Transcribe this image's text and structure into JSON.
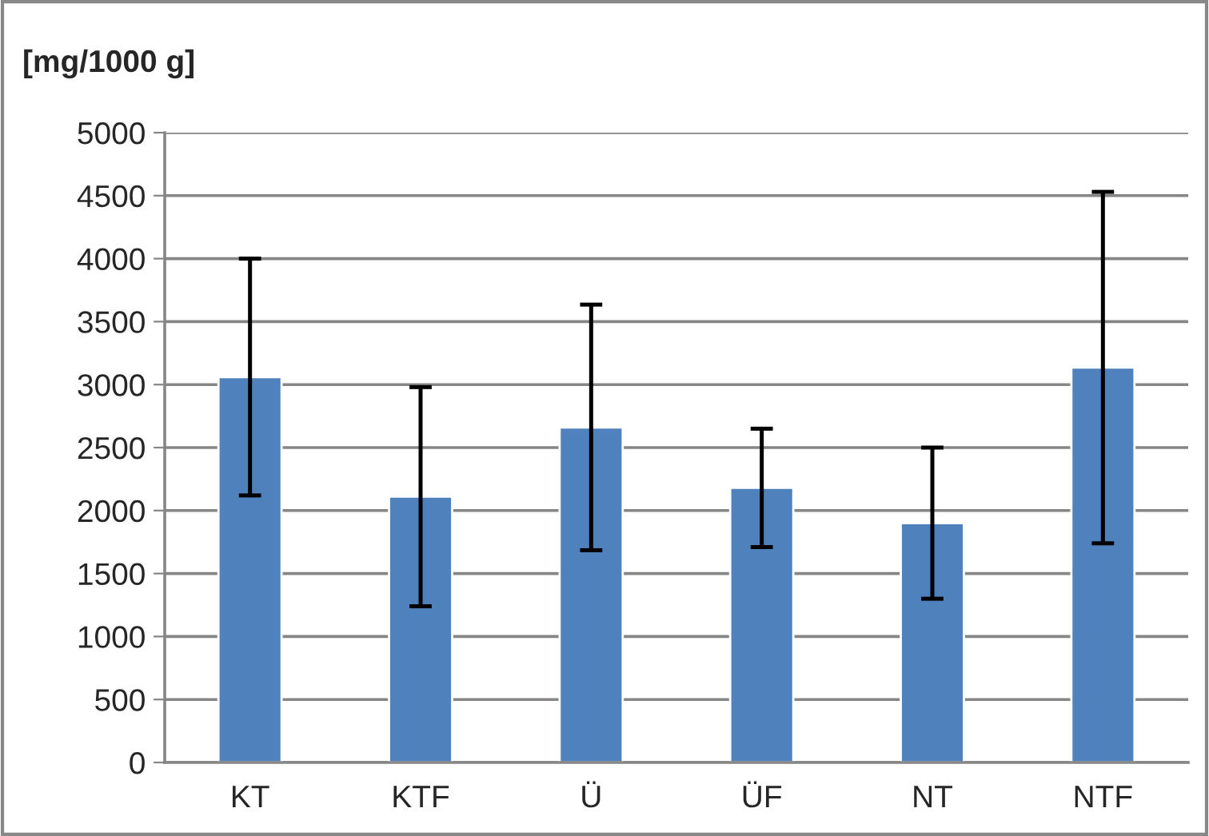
{
  "chart_data": {
    "type": "bar",
    "ylabel": "[mg/1000 g]",
    "categories": [
      "KT",
      "KTF",
      "Ü",
      "ÜF",
      "NT",
      "NTF"
    ],
    "values": [
      3060,
      2110,
      2660,
      2180,
      1900,
      3135
    ],
    "errors": [
      940,
      870,
      975,
      470,
      600,
      1395
    ],
    "color": "#4f81bd",
    "ylim": [
      0,
      5000
    ],
    "yticks": [
      0,
      500,
      1000,
      1500,
      2000,
      2500,
      3000,
      3500,
      4000,
      4500,
      5000
    ],
    "grid": "y",
    "legend": false
  }
}
